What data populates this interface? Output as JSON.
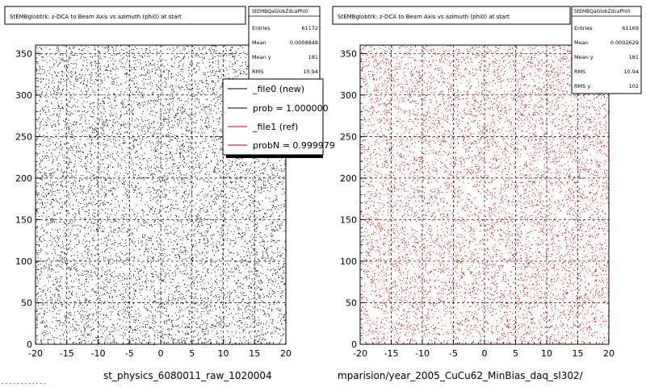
{
  "panels": [
    {
      "title": "StEMBglobtrk: z-DCA to Beam Axis vs azimuth (phi0) at start",
      "stats": {
        "name": "StEMBQaGlobZdcaPhi0",
        "rows": [
          {
            "label": "Entries",
            "value": "61172"
          },
          {
            "label": "Mean",
            "value": "0.0008848"
          },
          {
            "label": "Mean y",
            "value": "181"
          },
          {
            "label": "RMS",
            "value": "10.94"
          }
        ]
      },
      "legend": [
        {
          "label": "_file0 (new)",
          "color": "#000000"
        },
        {
          "label": "prob = 1.000000",
          "color": "#000000"
        },
        {
          "label": "_file1 (ref)",
          "color": "#cc0000"
        },
        {
          "label": "probN = 0.999979",
          "color": "#cc0000"
        }
      ],
      "footer": "st_physics_6080011_raw_1020004",
      "footer_left_fragment": "- - - - - - - - - - - -"
    },
    {
      "title": "StEMBglobtrk: z-DCA to Beam Axis vs azimuth (phi0) at start",
      "stats": {
        "name": "StEMBQaGlobZdcaPhi0",
        "rows": [
          {
            "label": "Entries",
            "value": "61169"
          },
          {
            "label": "Mean",
            "value": "0.0002629"
          },
          {
            "label": "Mean y",
            "value": "181"
          },
          {
            "label": "RMS",
            "value": "10.94"
          },
          {
            "label": "RMS y",
            "value": "102"
          }
        ]
      },
      "footer": "mparision/year_2005_CuCu62_MinBias_daq_sl302/"
    }
  ],
  "chart_data": [
    {
      "type": "scatter",
      "title": "StEMBglobtrk: z-DCA to Beam Axis vs azimuth (phi0) at start",
      "xlim": [
        -20,
        20
      ],
      "ylim": [
        0,
        360
      ],
      "x_ticks": [
        -20,
        -15,
        -10,
        -5,
        0,
        5,
        10,
        15,
        20
      ],
      "y_ticks": [
        0,
        50,
        100,
        150,
        200,
        250,
        300,
        350
      ],
      "grid": true,
      "color": "#000000",
      "entries": 61172,
      "distribution": "approximately uniform over x in [-20,20], y in [0,360]"
    },
    {
      "type": "scatter",
      "title": "StEMBglobtrk: z-DCA to Beam Axis vs azimuth (phi0) at start",
      "xlim": [
        -20,
        20
      ],
      "ylim": [
        0,
        360
      ],
      "x_ticks": [
        -20,
        -15,
        -10,
        -5,
        0,
        5,
        10,
        15,
        20
      ],
      "y_ticks": [
        0,
        50,
        100,
        150,
        200,
        250,
        300,
        350
      ],
      "grid": true,
      "color": "#cc0000",
      "entries": 61169,
      "distribution": "approximately uniform over x in [-20,20], y in [0,360]"
    }
  ]
}
